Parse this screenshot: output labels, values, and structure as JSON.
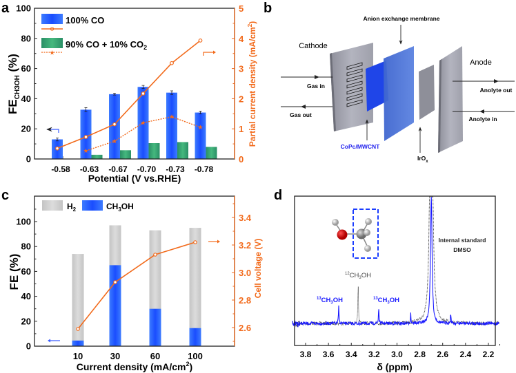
{
  "panel_labels": {
    "a": "a",
    "b": "b",
    "c": "c",
    "d": "d"
  },
  "colors": {
    "blue": "#1f4fff",
    "green": "#2e9e6a",
    "orange": "#f26a1b",
    "gray": "#c8c8c8",
    "spectrum": "#1a1aff"
  },
  "chart_data": [
    {
      "panel": "a",
      "type": "bar",
      "categories": [
        "-0.58",
        "-0.63",
        "-0.67",
        "-0.70",
        "-0.73",
        "-0.78"
      ],
      "series": [
        {
          "name": "100% CO",
          "type": "bar",
          "axis": "left",
          "values": [
            13,
            32.7,
            43,
            47.8,
            44,
            30.8
          ],
          "errors": [
            1,
            1.3,
            0.6,
            1,
            1.2,
            0.9
          ]
        },
        {
          "name": "90% CO + 10% CO2",
          "type": "bar",
          "axis": "left",
          "values": [
            null,
            2.8,
            5.8,
            10.5,
            11.2,
            8
          ]
        },
        {
          "name": "100% CO partial current",
          "type": "line",
          "axis": "right",
          "values": [
            0.35,
            0.73,
            1.15,
            2.17,
            3.18,
            3.93
          ]
        },
        {
          "name": "90% CO + 10% CO2 partial current",
          "type": "line",
          "style": "dotted",
          "axis": "right",
          "values": [
            null,
            0.27,
            0.59,
            1.2,
            1.4,
            1.05
          ]
        }
      ],
      "legend": {
        "blue_label": "100% CO",
        "green_label_main": "90% CO + 10% CO",
        "green_label_sub": "2"
      },
      "xlabel": "Potential (V vs.RHE)",
      "ylabel": {
        "main": "FE",
        "sub": "CH3OH",
        "unit": " (%)"
      },
      "y2label": {
        "main": "Partial current density (mA/cm",
        "sup": "2",
        "end": ")"
      },
      "ylim": [
        0,
        100
      ],
      "yticks": [
        "0",
        "20",
        "40",
        "60",
        "80",
        "100"
      ],
      "y2lim": [
        0,
        5
      ],
      "y2ticks": [
        "0",
        "1",
        "2",
        "3",
        "4",
        "5"
      ]
    },
    {
      "panel": "c",
      "type": "bar",
      "categories": [
        "10",
        "30",
        "60",
        "100"
      ],
      "series": [
        {
          "name": "H2",
          "type": "bar",
          "stacked": true,
          "axis": "left",
          "values": [
            74,
            97,
            93,
            95
          ]
        },
        {
          "name": "CH3OH",
          "type": "bar",
          "axis": "left",
          "values": [
            4.5,
            65,
            30,
            14.5
          ]
        },
        {
          "name": "Cell voltage",
          "type": "line",
          "axis": "right",
          "values": [
            2.59,
            2.93,
            3.13,
            3.22
          ]
        }
      ],
      "legend": {
        "h2_main": "H",
        "h2_sub": "2",
        "ch3oh_a": "CH",
        "ch3oh_sub": "3",
        "ch3oh_b": "OH"
      },
      "xlabel": {
        "main": "Current density (mA/cm",
        "sup": "2",
        "end": ")"
      },
      "ylabel": "FE (%)",
      "y2label": "Cell voltage (V)",
      "ylim": [
        0,
        118
      ],
      "yticks": [
        "0",
        "20",
        "40",
        "60",
        "80",
        "100"
      ],
      "y2lim": [
        2.465,
        3.55
      ],
      "y2ticks": [
        "2.6",
        "2.8",
        "3.0",
        "3.2",
        "3.4"
      ]
    },
    {
      "panel": "d",
      "type": "line",
      "xlabel": "δ (ppm)",
      "xlim": [
        3.92,
        2.1
      ],
      "xticks": [
        "3.8",
        "3.6",
        "3.4",
        "3.2",
        "3.0",
        "2.8",
        "2.6",
        "2.4",
        "2.2"
      ],
      "series": [
        {
          "name": "13C sample",
          "color": "#1a1aff",
          "peaks_ppm": [
            3.51,
            3.16,
            2.88,
            2.7,
            2.53
          ],
          "peak_rel_heights": [
            0.13,
            0.13,
            0.08,
            1.0,
            0.08
          ]
        },
        {
          "name": "12C reference",
          "color": "#333333",
          "style": "dotted",
          "peaks_ppm": [
            3.34,
            2.7
          ],
          "peak_rel_heights": [
            0.3,
            1.0
          ]
        }
      ],
      "annotations": {
        "c13_left": {
          "sup": "13",
          "a": "CH",
          "sub": "3",
          "b": "OH"
        },
        "c13_right": {
          "sup": "13",
          "a": "CH",
          "sub": "3",
          "b": "OH"
        },
        "c12": {
          "sup": "12",
          "a": "CH",
          "sub": "3",
          "b": "OH"
        },
        "dmso_line1": "Internal standard",
        "dmso_line2": "DMSO"
      }
    }
  ],
  "diagram": {
    "cathode": "Cathode",
    "anode": "Anode",
    "membrane": "Anion exchange membrane",
    "gas_in": "Gas in",
    "gas_out": "Gas out",
    "anolyte_out": "Anolyte out",
    "anolyte_in": "Anolyte in",
    "catalyst": "CoPc/MWCNT",
    "iro_main": "IrO",
    "iro_sub": "x"
  }
}
